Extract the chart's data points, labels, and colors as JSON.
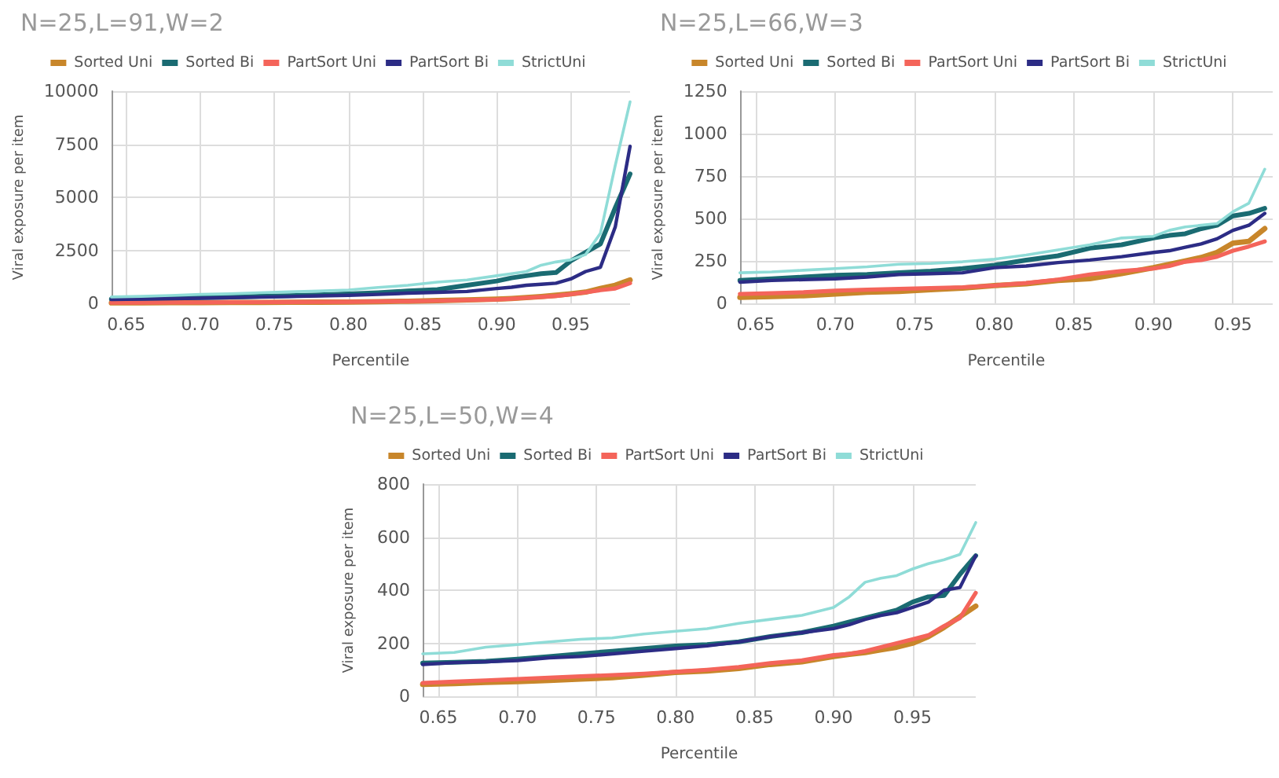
{
  "chart_data": [
    {
      "type": "line",
      "title": "N=25,L=91,W=2",
      "xlabel": "Percentile",
      "ylabel": "Viral exposure per item",
      "legend": "top",
      "grid": true,
      "marker": "none",
      "line_style": "solid",
      "x": [
        0.64,
        0.66,
        0.68,
        0.7,
        0.72,
        0.74,
        0.76,
        0.78,
        0.8,
        0.82,
        0.84,
        0.86,
        0.88,
        0.9,
        0.91,
        0.92,
        0.93,
        0.94,
        0.95,
        0.96,
        0.97,
        0.98,
        0.99
      ],
      "xlim": [
        0.64,
        0.99
      ],
      "xticks": [
        {
          "value": 0.65,
          "label": "0.65"
        },
        {
          "value": 0.7,
          "label": "0.70"
        },
        {
          "value": 0.75,
          "label": "0.75"
        },
        {
          "value": 0.8,
          "label": "0.80"
        },
        {
          "value": 0.85,
          "label": "0.85"
        },
        {
          "value": 0.9,
          "label": "0.90"
        },
        {
          "value": 0.95,
          "label": "0.95"
        }
      ],
      "ylim": [
        0,
        10000
      ],
      "yticks": [
        0,
        2500,
        5000,
        7500,
        10000
      ],
      "series": [
        {
          "name": "Sorted Uni",
          "color": "#c8862a",
          "values": [
            20,
            25,
            30,
            35,
            40,
            45,
            50,
            55,
            60,
            80,
            100,
            130,
            160,
            200,
            230,
            270,
            320,
            380,
            450,
            530,
            700,
            850,
            1100
          ]
        },
        {
          "name": "Sorted Bi",
          "color": "#1a6b72",
          "values": [
            200,
            220,
            250,
            280,
            300,
            330,
            360,
            400,
            440,
            500,
            580,
            650,
            850,
            1050,
            1200,
            1300,
            1400,
            1450,
            2000,
            2400,
            2800,
            4500,
            6100
          ]
        },
        {
          "name": "PartSort Uni",
          "color": "#f4645a",
          "values": [
            30,
            35,
            40,
            45,
            50,
            55,
            60,
            65,
            70,
            85,
            100,
            120,
            150,
            180,
            220,
            260,
            300,
            350,
            430,
            520,
            620,
            700,
            950
          ]
        },
        {
          "name": "PartSort Bi",
          "color": "#2c2c85",
          "values": [
            180,
            200,
            220,
            240,
            270,
            290,
            320,
            350,
            380,
            420,
            480,
            520,
            560,
            700,
            760,
            850,
            900,
            950,
            1150,
            1500,
            1700,
            3600,
            7400
          ]
        },
        {
          "name": "StrictUni",
          "color": "#8fdcd7",
          "values": [
            300,
            330,
            370,
            420,
            450,
            500,
            540,
            580,
            630,
            750,
            850,
            1000,
            1100,
            1300,
            1400,
            1500,
            1800,
            1950,
            2050,
            2300,
            3300,
            6500,
            9500
          ]
        }
      ]
    },
    {
      "type": "line",
      "title": "N=25,L=66,W=3",
      "xlabel": "Percentile",
      "ylabel": "Viral exposure per item",
      "legend": "top",
      "grid": true,
      "marker": "none",
      "line_style": "solid",
      "x": [
        0.64,
        0.66,
        0.68,
        0.7,
        0.72,
        0.74,
        0.76,
        0.78,
        0.8,
        0.82,
        0.84,
        0.86,
        0.88,
        0.9,
        0.91,
        0.92,
        0.93,
        0.94,
        0.95,
        0.96,
        0.97
      ],
      "xlim": [
        0.64,
        0.975
      ],
      "xticks": [
        {
          "value": 0.65,
          "label": "0.65"
        },
        {
          "value": 0.7,
          "label": "0.70"
        },
        {
          "value": 0.75,
          "label": "0.75"
        },
        {
          "value": 0.8,
          "label": "0.80"
        },
        {
          "value": 0.85,
          "label": "0.85"
        },
        {
          "value": 0.9,
          "label": "0.90"
        },
        {
          "value": 0.95,
          "label": "0.95"
        }
      ],
      "ylim": [
        0,
        1250
      ],
      "yticks": [
        0,
        250,
        500,
        750,
        1000,
        1250
      ],
      "series": [
        {
          "name": "Sorted Uni",
          "color": "#c8862a",
          "values": [
            35,
            40,
            45,
            55,
            65,
            70,
            80,
            90,
            105,
            115,
            135,
            145,
            175,
            210,
            230,
            250,
            270,
            300,
            355,
            365,
            440
          ]
        },
        {
          "name": "Sorted Bi",
          "color": "#1a6b72",
          "values": [
            135,
            145,
            155,
            165,
            170,
            180,
            190,
            205,
            225,
            255,
            280,
            325,
            345,
            385,
            400,
            410,
            440,
            460,
            515,
            530,
            560
          ]
        },
        {
          "name": "PartSort Uni",
          "color": "#f4645a",
          "values": [
            55,
            60,
            65,
            75,
            80,
            85,
            90,
            95,
            105,
            120,
            140,
            170,
            190,
            205,
            220,
            245,
            255,
            275,
            310,
            335,
            365
          ]
        },
        {
          "name": "PartSort Bi",
          "color": "#2c2c85",
          "values": [
            125,
            135,
            140,
            145,
            155,
            170,
            175,
            180,
            210,
            220,
            240,
            255,
            275,
            300,
            310,
            330,
            350,
            380,
            430,
            460,
            530
          ]
        },
        {
          "name": "StrictUni",
          "color": "#8fdcd7",
          "values": [
            180,
            185,
            195,
            205,
            215,
            230,
            235,
            245,
            260,
            285,
            315,
            345,
            385,
            395,
            430,
            450,
            460,
            470,
            540,
            590,
            790
          ]
        }
      ]
    },
    {
      "type": "line",
      "title": "N=25,L=50,W=4",
      "xlabel": "Percentile",
      "ylabel": "Viral exposure per item",
      "legend": "top",
      "grid": true,
      "marker": "none",
      "line_style": "solid",
      "x": [
        0.64,
        0.66,
        0.68,
        0.7,
        0.72,
        0.74,
        0.76,
        0.78,
        0.8,
        0.82,
        0.84,
        0.86,
        0.88,
        0.9,
        0.91,
        0.92,
        0.93,
        0.94,
        0.95,
        0.96,
        0.97,
        0.98,
        0.99
      ],
      "xlim": [
        0.64,
        0.99
      ],
      "xticks": [
        {
          "value": 0.65,
          "label": "0.65"
        },
        {
          "value": 0.7,
          "label": "0.70"
        },
        {
          "value": 0.75,
          "label": "0.75"
        },
        {
          "value": 0.8,
          "label": "0.80"
        },
        {
          "value": 0.85,
          "label": "0.85"
        },
        {
          "value": 0.9,
          "label": "0.90"
        },
        {
          "value": 0.95,
          "label": "0.95"
        }
      ],
      "ylim": [
        0,
        800
      ],
      "yticks": [
        0,
        200,
        400,
        600,
        800
      ],
      "series": [
        {
          "name": "Sorted Uni",
          "color": "#c8862a",
          "values": [
            45,
            48,
            52,
            55,
            60,
            65,
            70,
            80,
            90,
            95,
            105,
            120,
            130,
            150,
            158,
            165,
            175,
            185,
            200,
            225,
            260,
            300,
            340
          ]
        },
        {
          "name": "Sorted Bi",
          "color": "#1a6b72",
          "values": [
            125,
            128,
            132,
            140,
            150,
            160,
            170,
            180,
            190,
            195,
            205,
            225,
            240,
            265,
            280,
            295,
            310,
            325,
            355,
            375,
            380,
            460,
            530
          ]
        },
        {
          "name": "PartSort Uni",
          "color": "#f4645a",
          "values": [
            50,
            55,
            60,
            65,
            70,
            75,
            80,
            85,
            92,
            100,
            110,
            125,
            135,
            155,
            160,
            170,
            185,
            200,
            215,
            230,
            265,
            295,
            390
          ]
        },
        {
          "name": "PartSort Bi",
          "color": "#2c2c85",
          "values": [
            120,
            127,
            130,
            135,
            145,
            150,
            160,
            170,
            180,
            190,
            205,
            225,
            240,
            255,
            270,
            290,
            305,
            315,
            335,
            355,
            400,
            410,
            530
          ]
        },
        {
          "name": "StrictUni",
          "color": "#8fdcd7",
          "values": [
            160,
            165,
            185,
            195,
            205,
            215,
            220,
            235,
            245,
            255,
            275,
            290,
            305,
            335,
            375,
            430,
            445,
            455,
            480,
            500,
            515,
            535,
            655
          ]
        }
      ]
    }
  ]
}
